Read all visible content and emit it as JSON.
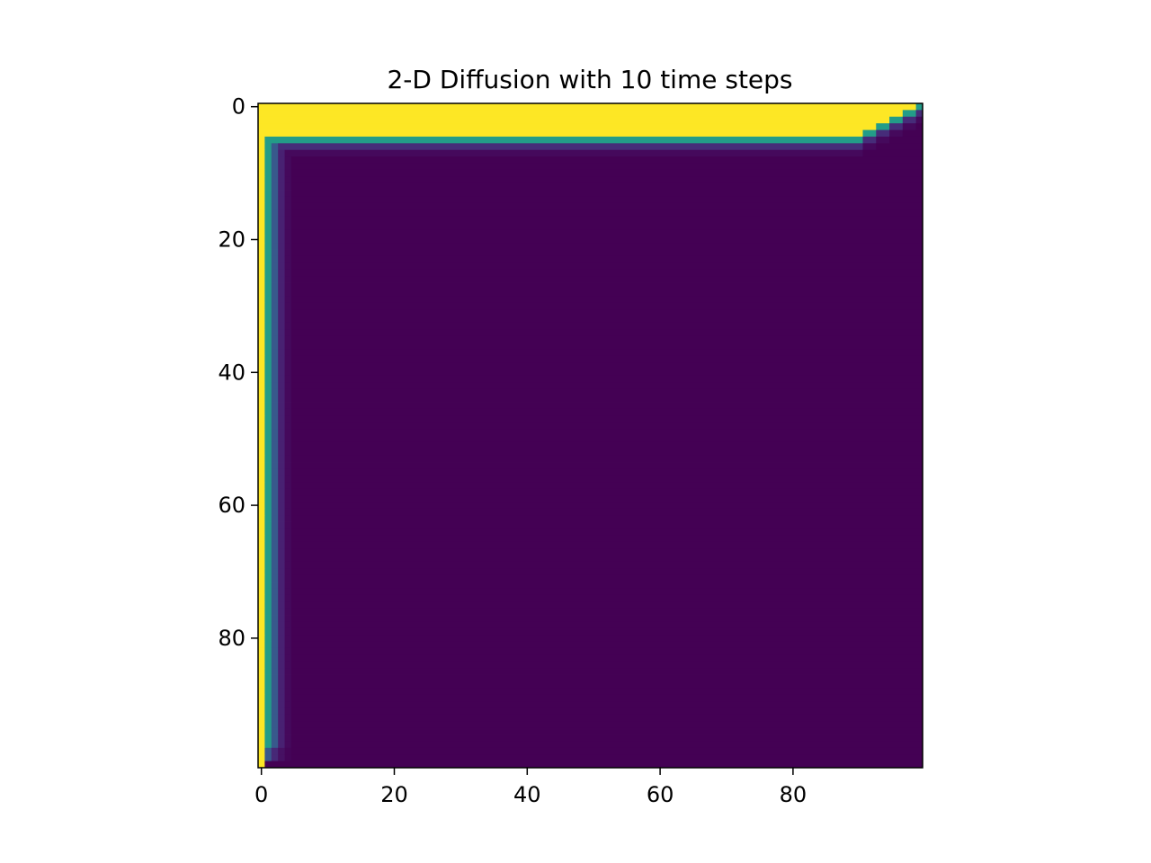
{
  "chart_data": {
    "type": "heatmap",
    "title": "2-D Diffusion with 10 time steps",
    "xlabel": "",
    "ylabel": "",
    "grid_size": [
      100,
      100
    ],
    "xlim": [
      -0.5,
      99.5
    ],
    "ylim": [
      99.5,
      -0.5
    ],
    "y_inverted": true,
    "grid": false,
    "colormap": "viridis",
    "value_range": [
      0,
      1
    ],
    "x_ticks": [
      0,
      20,
      40,
      60,
      80
    ],
    "x_tick_labels": [
      "0",
      "20",
      "40",
      "60",
      "80"
    ],
    "y_ticks": [
      0,
      20,
      40,
      60,
      80
    ],
    "y_tick_labels": [
      "0",
      "20",
      "40",
      "60",
      "80"
    ],
    "background_value": 0.0,
    "top_band": {
      "description": "rows 0-4 hot (value 1), columns 0-89; tapering edge toward right corner",
      "hot_rows": [
        0,
        4
      ],
      "row_profile_below_hot": [
        0.55,
        0.15,
        0.03
      ],
      "taper_columns_start": 88,
      "corner_value": 0.0
    },
    "left_band": {
      "description": "column 0 hot (value 1) over rows 0-98; diffusion profile to the right",
      "hot_columns": [
        0,
        0
      ],
      "column_profile_right_of_hot": [
        0.55,
        0.28,
        0.12,
        0.03
      ],
      "bottom_row_value": 0.0
    },
    "colors": {
      "low": "#440154",
      "high": "#fde725"
    }
  }
}
